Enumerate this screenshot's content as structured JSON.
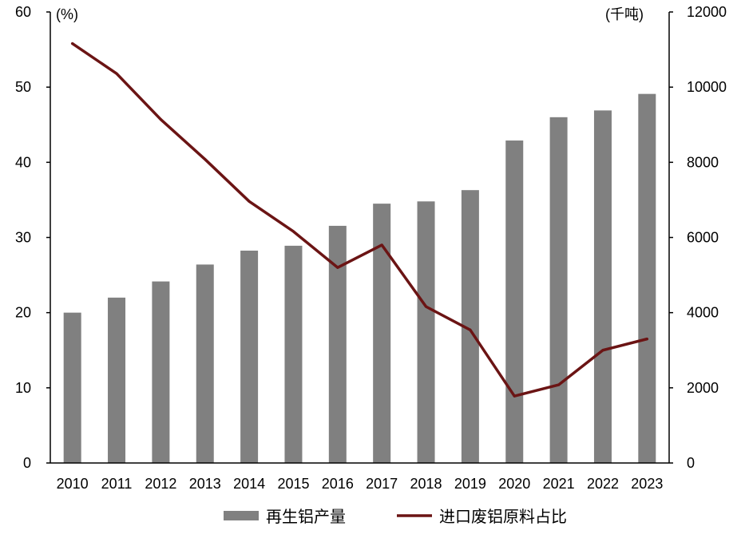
{
  "chart_data": {
    "type": "bar+line",
    "categories": [
      "2010",
      "2011",
      "2012",
      "2013",
      "2014",
      "2015",
      "2016",
      "2017",
      "2018",
      "2019",
      "2020",
      "2021",
      "2022",
      "2023"
    ],
    "series": [
      {
        "name": "再生铝产量",
        "type": "bar",
        "axis": "right",
        "values": [
          4000,
          4400,
          4830,
          5280,
          5650,
          5780,
          6310,
          6900,
          6960,
          7260,
          8580,
          9200,
          9380,
          9820
        ]
      },
      {
        "name": "进口废铝原料占比",
        "type": "line",
        "axis": "left",
        "values": [
          55.8,
          51.8,
          45.7,
          40.4,
          34.8,
          30.8,
          26.0,
          29.0,
          20.8,
          17.7,
          8.9,
          10.4,
          15.0,
          16.5
        ]
      }
    ],
    "left_axis": {
      "label": "(%)",
      "min": 0,
      "max": 60,
      "ticks": [
        "0",
        "10",
        "20",
        "30",
        "40",
        "50",
        "60"
      ]
    },
    "right_axis": {
      "label": "(千吨)",
      "min": 0,
      "max": 12000,
      "ticks": [
        "0",
        "2000",
        "4000",
        "6000",
        "8000",
        "10000",
        "12000"
      ]
    },
    "colors": {
      "bar": "#808080",
      "line": "#6b1414"
    },
    "legend_position": "bottom"
  }
}
